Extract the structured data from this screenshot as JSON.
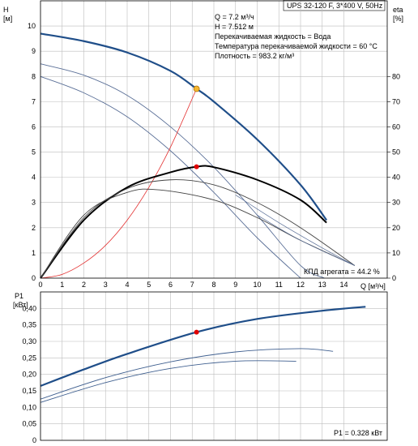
{
  "chart_data": [
    {
      "type": "line",
      "title": "UPS 32-120 F, 3*400 V, 50Hz",
      "xlabel": "Q [м³/ч]",
      "ylabel_left": "H [м]",
      "ylabel_right": "eta [%]",
      "xlim": [
        0,
        16
      ],
      "ylim_left": [
        0,
        11
      ],
      "ylim_right": [
        0,
        110
      ],
      "x_ticks": [
        0,
        1,
        2,
        3,
        4,
        5,
        6,
        7,
        8,
        9,
        10,
        11,
        12,
        13,
        14
      ],
      "y_ticks_left": [
        0,
        1,
        2,
        3,
        4,
        5,
        6,
        7,
        8,
        9,
        10
      ],
      "y_ticks_right": [
        0,
        10,
        20,
        30,
        40,
        50,
        60,
        70,
        80
      ],
      "grid": true,
      "info_lines": [
        "Q = 7.2 м³/ч",
        "H = 7.512 м",
        "Перекачиваемая жидкость = Вода",
        "Температура перекачиваемой жидкости = 60 °C",
        "Плотность = 983.2 кг/м³"
      ],
      "efficiency_label": "КПД агрегата = 44.2 %",
      "series": [
        {
          "role": "head-max",
          "axis": "left",
          "color": "#1f4e89",
          "width": 2.2,
          "x": [
            0,
            2,
            4,
            6,
            7.2,
            8,
            10,
            12,
            13.2
          ],
          "y": [
            9.7,
            9.4,
            8.95,
            8.22,
            7.51,
            7.0,
            5.5,
            3.7,
            2.3
          ]
        },
        {
          "role": "head-speed-2",
          "axis": "left",
          "color": "#5a6f97",
          "width": 0.9,
          "x": [
            0,
            2,
            4,
            6,
            8,
            10,
            12,
            13.1
          ],
          "y": [
            8.5,
            8.05,
            7.25,
            6.0,
            4.4,
            2.5,
            0.5,
            0
          ]
        },
        {
          "role": "head-speed-3",
          "axis": "left",
          "color": "#5a6f97",
          "width": 0.9,
          "x": [
            0,
            2,
            4,
            6,
            8,
            10,
            12
          ],
          "y": [
            8.0,
            7.35,
            6.4,
            5.05,
            3.4,
            1.6,
            0
          ]
        },
        {
          "role": "system-curve",
          "axis": "left",
          "color": "#e33030",
          "width": 0.8,
          "x": [
            0,
            1,
            2,
            3,
            4,
            5,
            6,
            7.2
          ],
          "y": [
            0,
            0.15,
            0.6,
            1.3,
            2.3,
            3.6,
            5.2,
            7.51
          ]
        },
        {
          "role": "efficiency-max",
          "axis": "right",
          "color": "#000000",
          "width": 2.0,
          "x": [
            0,
            2,
            4,
            6,
            7.2,
            8,
            10,
            12,
            13.2
          ],
          "y": [
            0,
            23,
            36,
            42,
            44.2,
            44.0,
            39,
            31,
            22
          ]
        },
        {
          "role": "efficiency-speed-2",
          "axis": "right",
          "color": "#444444",
          "width": 0.9,
          "x": [
            0,
            2,
            4,
            6,
            8,
            10,
            12,
            14.5
          ],
          "y": [
            0,
            24,
            35.5,
            39,
            37,
            30,
            20,
            5
          ]
        },
        {
          "role": "efficiency-speed-3",
          "axis": "right",
          "color": "#444444",
          "width": 0.9,
          "x": [
            0,
            2,
            4,
            5.5,
            8,
            10,
            12,
            14.5
          ],
          "y": [
            0,
            25,
            34,
            35,
            31,
            24,
            15,
            5
          ]
        },
        {
          "role": "outline-curve-a",
          "axis": "right",
          "color": "#5a6f97",
          "width": 0.7,
          "x": [
            10,
            12,
            14.5
          ],
          "y": [
            25,
            15,
            5
          ]
        },
        {
          "role": "outline-curve-b",
          "axis": "right",
          "color": "#5a6f97",
          "width": 0.7,
          "x": [
            9,
            11,
            13,
            14.5
          ],
          "y": [
            33,
            22,
            12,
            5
          ]
        }
      ],
      "duty_point": {
        "x": 7.2,
        "y": 7.51,
        "color": "#f5b730"
      },
      "eta_point": {
        "x": 7.2,
        "y": 44.2,
        "color": "#e00000"
      }
    },
    {
      "type": "line",
      "ylabel": "P1 [кВт]",
      "xlim": [
        0,
        16
      ],
      "ylim": [
        0,
        0.45
      ],
      "y_ticks": [
        0,
        0.05,
        0.1,
        0.15,
        0.2,
        0.25,
        0.3,
        0.35,
        0.4
      ],
      "y_tick_labels": [
        "0",
        "0,05",
        "0,10",
        "0,15",
        "0,20",
        "0,25",
        "0,30",
        "0,35",
        "0,40"
      ],
      "grid": true,
      "power_label": "P1 = 0.328 кВт",
      "series": [
        {
          "role": "power-max",
          "color": "#1f4e89",
          "width": 2.2,
          "x": [
            0,
            2,
            4,
            7.2,
            10,
            13,
            15
          ],
          "y": [
            0.165,
            0.215,
            0.262,
            0.328,
            0.368,
            0.393,
            0.405
          ]
        },
        {
          "role": "power-speed-2",
          "color": "#3f5f8f",
          "width": 0.9,
          "x": [
            0,
            3,
            6,
            9,
            12,
            13.5
          ],
          "y": [
            0.125,
            0.19,
            0.238,
            0.268,
            0.278,
            0.27
          ]
        },
        {
          "role": "power-speed-3",
          "color": "#3f5f8f",
          "width": 0.9,
          "x": [
            0,
            3,
            6,
            9,
            11.8
          ],
          "y": [
            0.115,
            0.175,
            0.218,
            0.24,
            0.24
          ]
        }
      ],
      "duty_point": {
        "x": 7.2,
        "y": 0.328,
        "color": "#e00000"
      }
    }
  ]
}
